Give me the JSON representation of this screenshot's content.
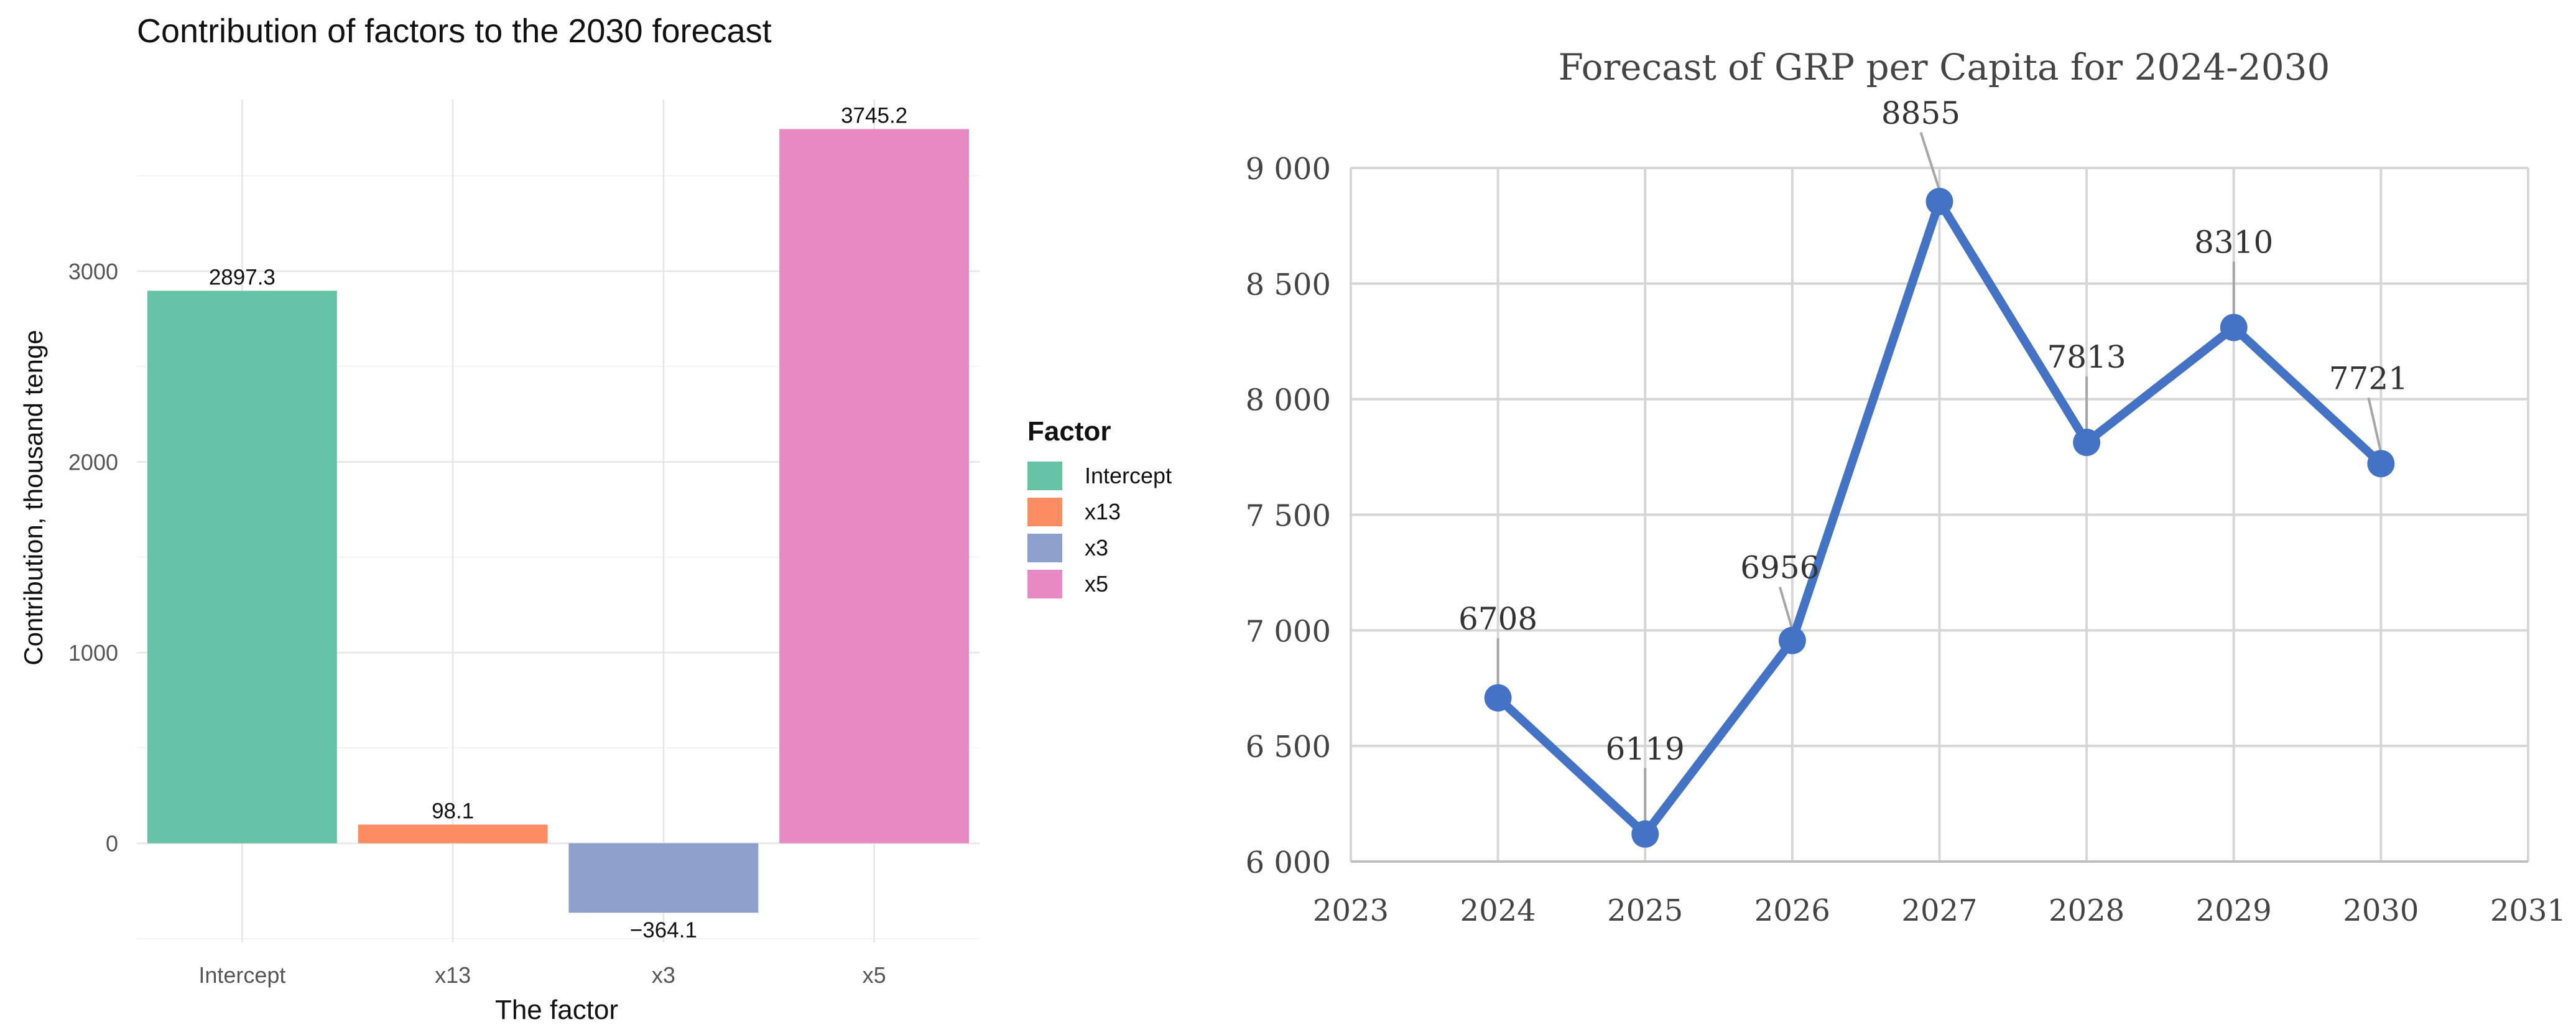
{
  "chart_data": [
    {
      "type": "bar",
      "title": "Contribution of factors to the 2030 forecast",
      "xlabel": "The factor",
      "ylabel": "Contribution, thousand tenge",
      "categories": [
        "Intercept",
        "x13",
        "x3",
        "x5"
      ],
      "values": [
        2897.3,
        98.1,
        -364.1,
        3745.2
      ],
      "value_labels": [
        "2897.3",
        "98.1",
        "−364.1",
        "3745.2"
      ],
      "colors": [
        "#66c2a5",
        "#fc8d62",
        "#8da0cb",
        "#e78ac3"
      ],
      "ylim": [
        -520,
        3900
      ],
      "y_ticks": [
        0,
        1000,
        2000,
        3000
      ],
      "y_tick_labels": [
        "0",
        "1000",
        "2000",
        "3000"
      ],
      "grid": true,
      "legend": {
        "title": "Factor",
        "placement": "right",
        "entries": [
          "Intercept",
          "x13",
          "x3",
          "x5"
        ]
      }
    },
    {
      "type": "line",
      "title": "Forecast of GRP per Capita for 2024-2030",
      "x": [
        2024,
        2025,
        2026,
        2027,
        2028,
        2029,
        2030
      ],
      "y": [
        6708,
        6119,
        6956,
        8855,
        7813,
        8310,
        7721
      ],
      "point_labels": [
        "6708",
        "6119",
        "6956",
        "8855",
        "7813",
        "8310",
        "7721"
      ],
      "color": "#4472c4",
      "xlim": [
        2023,
        2031
      ],
      "x_ticks": [
        2023,
        2024,
        2025,
        2026,
        2027,
        2028,
        2029,
        2030,
        2031
      ],
      "ylim": [
        6000,
        9000
      ],
      "y_ticks": [
        6000,
        6500,
        7000,
        7500,
        8000,
        8500,
        9000
      ],
      "y_tick_labels": [
        "6 000",
        "6 500",
        "7 000",
        "7 500",
        "8 000",
        "8 500",
        "9 000"
      ],
      "grid": true
    }
  ]
}
